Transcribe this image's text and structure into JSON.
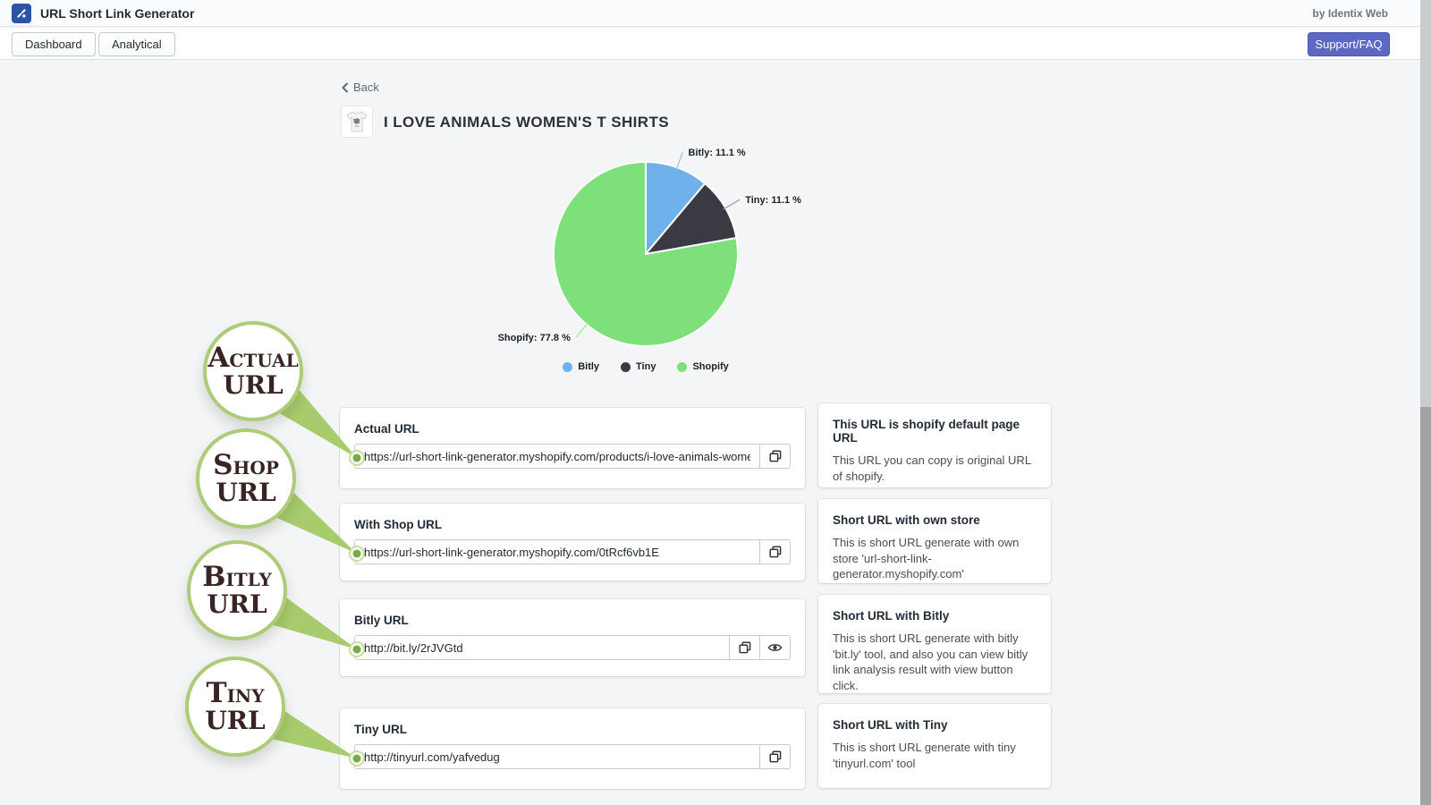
{
  "header": {
    "app_title": "URL Short Link Generator",
    "byline": "by Identix Web",
    "nav": {
      "dashboard": "Dashboard",
      "analytical": "Analytical",
      "support": "Support/FAQ"
    }
  },
  "page": {
    "back_label": "Back",
    "product_title": "I LOVE ANIMALS WOMEN'S T SHIRTS"
  },
  "chart_data": {
    "type": "pie",
    "title": "",
    "slices": [
      {
        "name": "Bitly",
        "value": 11.1,
        "percent_label": "Bitly: 11.1 %",
        "color": "#6fb1ea",
        "line_color": "#8fc1f0"
      },
      {
        "name": "Tiny",
        "value": 11.1,
        "percent_label": "Tiny: 11.1 %",
        "color": "#3b3a42",
        "line_color": "#9a9a9a"
      },
      {
        "name": "Shopify",
        "value": 77.8,
        "percent_label": "Shopify: 77.8 %",
        "color": "#7ee07a",
        "line_color": "#a2e39e"
      }
    ],
    "legend": [
      "Bitly",
      "Tiny",
      "Shopify"
    ],
    "legend_position": "bottom",
    "start_angle_deg": 0,
    "direction": "clockwise"
  },
  "badges": [
    {
      "line1": "Actual",
      "line2": "URL"
    },
    {
      "line1": "Shop",
      "line2": "URL"
    },
    {
      "line1": "Bitly",
      "line2": "URL"
    },
    {
      "line1": "Tiny",
      "line2": "URL"
    }
  ],
  "url_cards": [
    {
      "title": "Actual URL",
      "value": "https://url-short-link-generator.myshopify.com/products/i-love-animals-womens-t-shirt"
    },
    {
      "title": "With Shop URL",
      "value": "https://url-short-link-generator.myshopify.com/0tRcf6vb1E"
    },
    {
      "title": "Bitly URL",
      "value": "http://bit.ly/2rJVGtd"
    },
    {
      "title": "Tiny URL",
      "value": "http://tinyurl.com/yafvedug"
    }
  ],
  "info_cards": [
    {
      "title": "This URL is shopify default page URL",
      "body": "This URL you can copy is original URL of shopify."
    },
    {
      "title": "Short URL with own store",
      "body": "This is short URL generate with own store 'url-short-link-generator.myshopify.com'"
    },
    {
      "title": "Short URL with Bitly",
      "body": "This is short URL generate with bitly 'bit.ly' tool, and also you can view bitly link analysis result with view button click."
    },
    {
      "title": "Short URL with Tiny",
      "body": "This is short URL generate with tiny 'tinyurl.com' tool"
    }
  ],
  "colors": {
    "accent_indigo": "#5c68c3",
    "badge_green": "#a7cb6d",
    "badge_dot_green": "#74ae43",
    "logo_blue": "#2b55a4",
    "page_bg": "#f4f5f7"
  }
}
